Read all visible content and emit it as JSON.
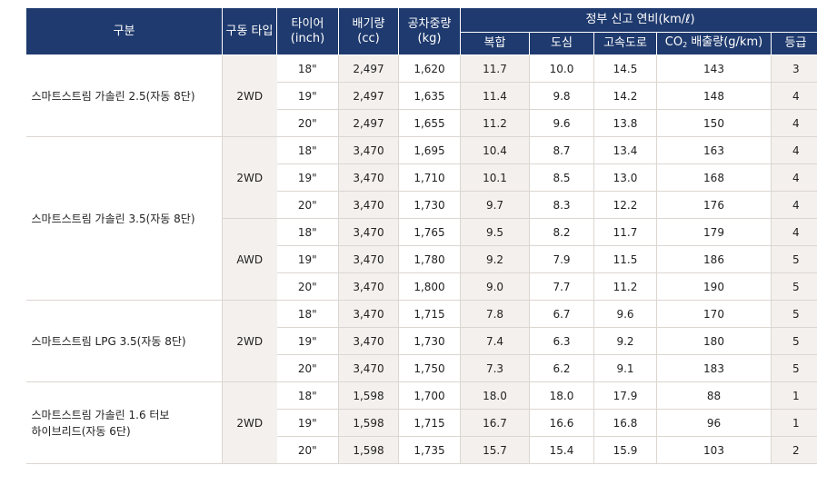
{
  "headers": {
    "category": "구분",
    "drive_type": "구동 타입",
    "tire_line1": "타이어",
    "tire_line2": "(inch)",
    "displacement_line1": "배기량",
    "displacement_line2": "(cc)",
    "curb_weight_line1": "공차중량",
    "curb_weight_line2": "(kg)",
    "fuel_efficiency": "정부 신고 연비(km/ℓ)",
    "combined": "복합",
    "city": "도심",
    "highway": "고속도로",
    "co2_prefix": "CO",
    "co2_subscript": "2",
    "co2_suffix": " 배출량(g/km)",
    "grade": "등급"
  },
  "groups": [
    {
      "model_line1": "스마트스트림 가솔린 2.5(자동 8단)",
      "model_line2": "",
      "drives": [
        {
          "drive": "2WD",
          "rows": [
            {
              "tire": "18\"",
              "cc": "2,497",
              "kg": "1,620",
              "combined": "11.7",
              "city": "10.0",
              "highway": "14.5",
              "co2": "143",
              "grade": "3"
            },
            {
              "tire": "19\"",
              "cc": "2,497",
              "kg": "1,635",
              "combined": "11.4",
              "city": "9.8",
              "highway": "14.2",
              "co2": "148",
              "grade": "4"
            },
            {
              "tire": "20\"",
              "cc": "2,497",
              "kg": "1,655",
              "combined": "11.2",
              "city": "9.6",
              "highway": "13.8",
              "co2": "150",
              "grade": "4"
            }
          ]
        }
      ]
    },
    {
      "model_line1": "스마트스트림 가솔린 3.5(자동 8단)",
      "model_line2": "",
      "drives": [
        {
          "drive": "2WD",
          "rows": [
            {
              "tire": "18\"",
              "cc": "3,470",
              "kg": "1,695",
              "combined": "10.4",
              "city": "8.7",
              "highway": "13.4",
              "co2": "163",
              "grade": "4"
            },
            {
              "tire": "19\"",
              "cc": "3,470",
              "kg": "1,710",
              "combined": "10.1",
              "city": "8.5",
              "highway": "13.0",
              "co2": "168",
              "grade": "4"
            },
            {
              "tire": "20\"",
              "cc": "3,470",
              "kg": "1,730",
              "combined": "9.7",
              "city": "8.3",
              "highway": "12.2",
              "co2": "176",
              "grade": "4"
            }
          ]
        },
        {
          "drive": "AWD",
          "rows": [
            {
              "tire": "18\"",
              "cc": "3,470",
              "kg": "1,765",
              "combined": "9.5",
              "city": "8.2",
              "highway": "11.7",
              "co2": "179",
              "grade": "4"
            },
            {
              "tire": "19\"",
              "cc": "3,470",
              "kg": "1,780",
              "combined": "9.2",
              "city": "7.9",
              "highway": "11.5",
              "co2": "186",
              "grade": "5"
            },
            {
              "tire": "20\"",
              "cc": "3,470",
              "kg": "1,800",
              "combined": "9.0",
              "city": "7.7",
              "highway": "11.2",
              "co2": "190",
              "grade": "5"
            }
          ]
        }
      ]
    },
    {
      "model_line1": "스마트스트림 LPG 3.5(자동 8단)",
      "model_line2": "",
      "drives": [
        {
          "drive": "2WD",
          "rows": [
            {
              "tire": "18\"",
              "cc": "3,470",
              "kg": "1,715",
              "combined": "7.8",
              "city": "6.7",
              "highway": "9.6",
              "co2": "170",
              "grade": "5"
            },
            {
              "tire": "19\"",
              "cc": "3,470",
              "kg": "1,730",
              "combined": "7.4",
              "city": "6.3",
              "highway": "9.2",
              "co2": "180",
              "grade": "5"
            },
            {
              "tire": "20\"",
              "cc": "3,470",
              "kg": "1,750",
              "combined": "7.3",
              "city": "6.2",
              "highway": "9.1",
              "co2": "183",
              "grade": "5"
            }
          ]
        }
      ]
    },
    {
      "model_line1": "스마트스트림 가솔린 1.6 터보",
      "model_line2": "하이브리드(자동 6단)",
      "drives": [
        {
          "drive": "2WD",
          "rows": [
            {
              "tire": "18\"",
              "cc": "1,598",
              "kg": "1,700",
              "combined": "18.0",
              "city": "18.0",
              "highway": "17.9",
              "co2": "88",
              "grade": "1"
            },
            {
              "tire": "19\"",
              "cc": "1,598",
              "kg": "1,715",
              "combined": "16.7",
              "city": "16.6",
              "highway": "16.8",
              "co2": "96",
              "grade": "1"
            },
            {
              "tire": "20\"",
              "cc": "1,598",
              "kg": "1,735",
              "combined": "15.7",
              "city": "15.4",
              "highway": "15.9",
              "co2": "103",
              "grade": "2"
            }
          ]
        }
      ]
    }
  ],
  "colors": {
    "header_bg": "#1f3a6e",
    "beige_bg": "#f4f0ed",
    "grid": "#dcd6d1"
  }
}
